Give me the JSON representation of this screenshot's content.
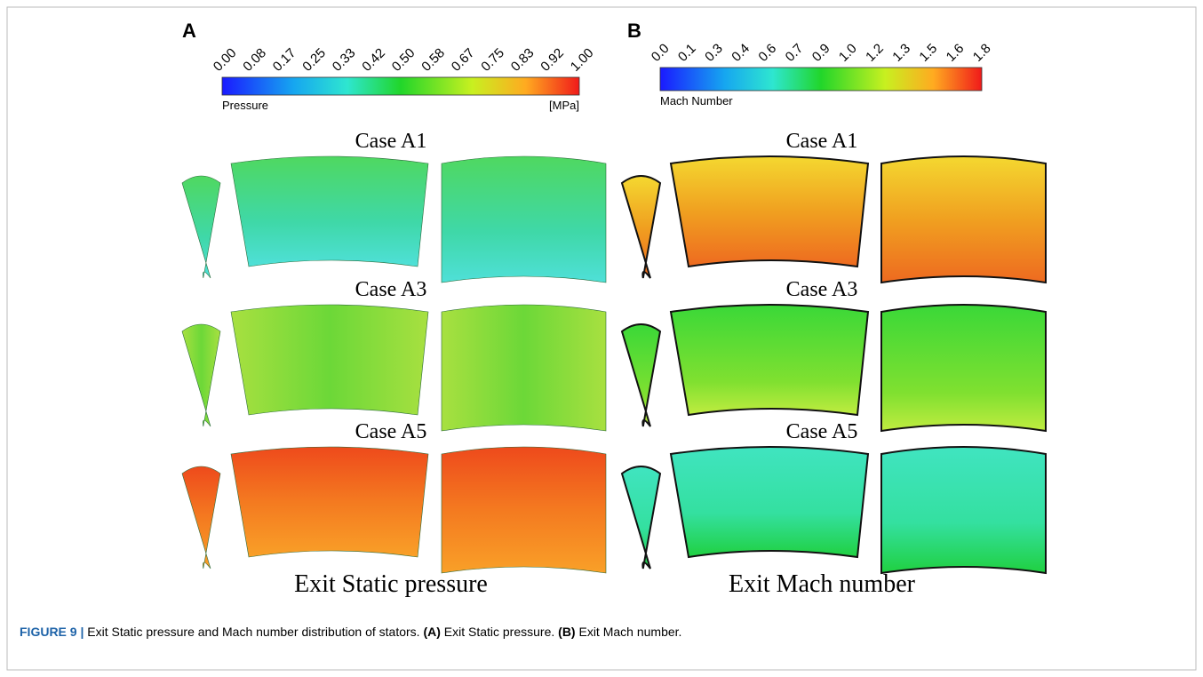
{
  "panels": [
    {
      "label": "A",
      "colorbar": {
        "ticks": [
          "0.00",
          "0.08",
          "0.17",
          "0.25",
          "0.33",
          "0.42",
          "0.50",
          "0.58",
          "0.67",
          "0.75",
          "0.83",
          "0.92",
          "1.00"
        ],
        "title": "Pressure",
        "unit": "[MPa]"
      },
      "cases": [
        "Case A1",
        "Case A3",
        "Case A5"
      ],
      "caption": "Exit Static pressure"
    },
    {
      "label": "B",
      "colorbar": {
        "ticks": [
          "0.0",
          "0.1",
          "0.3",
          "0.4",
          "0.6",
          "0.7",
          "0.9",
          "1.0",
          "1.2",
          "1.3",
          "1.5",
          "1.6",
          "1.8"
        ],
        "title": "Mach Number"
      },
      "cases": [
        "Case A1",
        "Case A3",
        "Case A5"
      ],
      "caption": "Exit Mach number"
    }
  ],
  "figure_caption": {
    "label": "FIGURE 9 |",
    "text": "Exit Static pressure and Mach number distribution of stators.",
    "a_label": "(A)",
    "a_text": "Exit Static pressure.",
    "b_label": "(B)",
    "b_text": "Exit Mach number."
  }
}
